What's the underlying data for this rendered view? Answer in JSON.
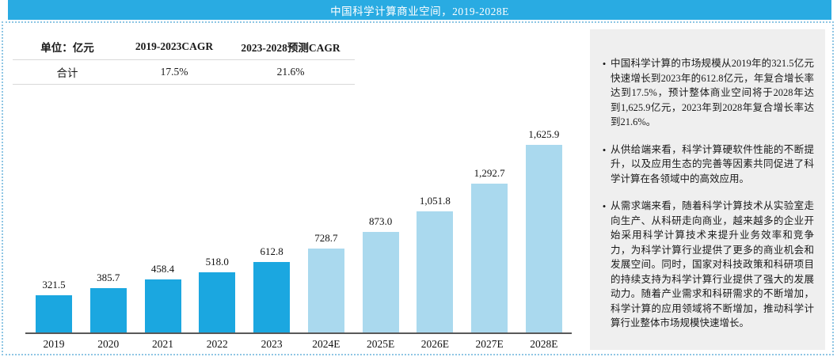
{
  "header": {
    "title": "中国科学计算商业空间，2019-2028E"
  },
  "table": {
    "headers": [
      "单位：亿元",
      "2019-2023CAGR",
      "2023-2028预测CAGR"
    ],
    "row": [
      "合计",
      "17.5%",
      "21.6%"
    ]
  },
  "chart_data": {
    "type": "bar",
    "title": "中国科学计算商业空间，2019-2028E",
    "unit": "亿元",
    "categories": [
      "2019",
      "2020",
      "2021",
      "2022",
      "2023",
      "2024E",
      "2025E",
      "2026E",
      "2027E",
      "2028E"
    ],
    "values": [
      321.5,
      385.7,
      458.4,
      518.0,
      612.8,
      728.7,
      873.0,
      1051.8,
      1292.7,
      1625.9
    ],
    "value_labels": [
      "321.5",
      "385.7",
      "458.4",
      "518.0",
      "612.8",
      "728.7",
      "873.0",
      "1,051.8",
      "1,292.7",
      "1,625.9"
    ],
    "actual_count": 5,
    "series_colors": {
      "actual": "#1ba7e0",
      "forecast": "#aad9ee"
    },
    "xlabel": "",
    "ylabel": "",
    "ylim": [
      0,
      1700
    ],
    "grid": false,
    "legend": false
  },
  "panel": {
    "bullets": [
      "中国科学计算的市场规模从2019年的321.5亿元快速增长到2023年的612.8亿元，年复合增长率达到17.5%，预计整体商业空间将于2028年达到1,625.9亿元，2023年到2028年复合增长率达到21.6%。",
      "从供给端来看，科学计算硬软件性能的不断提升，以及应用生态的完善等因素共同促进了科学计算在各领域中的高效应用。",
      "从需求端来看，随着科学计算技术从实验室走向生产、从科研走向商业，越来越多的企业开始采用科学计算技术来提升业务效率和竞争力，为科学计算行业提供了更多的商业机会和发展空间。同时，国家对科技政策和科研项目的持续支持为科学计算行业提供了强大的发展动力。随着产业需求和科研需求的不断增加，科学计算的应用领域将不断增加，推动科学计算行业整体市场规模快速增长。"
    ]
  },
  "colors": {
    "header_bg": "#29abe2",
    "bar_actual": "#1ba7e0",
    "bar_forecast": "#aad9ee",
    "panel_bg": "#efefef",
    "frame_dotted": "#8fc6e4",
    "table_line": "#d9d9d9",
    "axis": "#595959",
    "text": "#1a1a1a"
  }
}
